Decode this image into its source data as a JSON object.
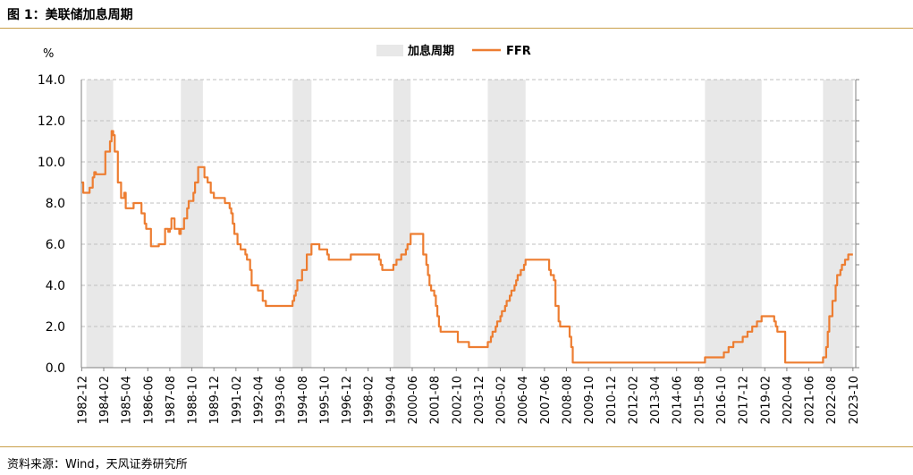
{
  "figure": {
    "title": "图 1：美联储加息周期",
    "source": "资料来源：Wind，天风证券研究所"
  },
  "chart_data": {
    "type": "line",
    "ylabel": "%",
    "ylim": [
      0,
      14
    ],
    "yticks": [
      "0.0",
      "2.0",
      "4.0",
      "6.0",
      "8.0",
      "10.0",
      "12.0",
      "14.0"
    ],
    "xlim": [
      1982.9,
      2023.9
    ],
    "xticks": [
      "1982-12",
      "1984-02",
      "1985-04",
      "1986-06",
      "1987-08",
      "1988-10",
      "1989-12",
      "1991-02",
      "1992-04",
      "1993-06",
      "1994-08",
      "1995-10",
      "1996-12",
      "1998-02",
      "1999-04",
      "2000-06",
      "2001-08",
      "2002-10",
      "2003-12",
      "2005-02",
      "2006-04",
      "2007-06",
      "2008-08",
      "2009-10",
      "2010-12",
      "2012-02",
      "2013-04",
      "2014-06",
      "2015-08",
      "2016-10",
      "2017-12",
      "2019-02",
      "2020-04",
      "2021-06",
      "2022-08",
      "2023-10"
    ],
    "grid": "horizontal-dashed",
    "legend_position": "top-center",
    "legend": [
      "加息周期",
      "FFR"
    ],
    "colors": {
      "line": "#ed7d31",
      "band": "#e8e8e8",
      "grid": "#bfbfbf",
      "axis": "#808080"
    },
    "hike_cycles": [
      [
        "1983-03",
        "1984-08"
      ],
      [
        "1988-03",
        "1989-05"
      ],
      [
        "1994-02",
        "1995-02"
      ],
      [
        "1999-06",
        "2000-05"
      ],
      [
        "2004-06",
        "2006-06"
      ],
      [
        "2015-12",
        "2018-12"
      ],
      [
        "2022-03",
        "2023-10"
      ]
    ],
    "series": [
      {
        "name": "FFR",
        "points": [
          [
            "1982-12",
            9.0
          ],
          [
            "1983-01",
            8.5
          ],
          [
            "1983-04",
            8.5
          ],
          [
            "1983-05",
            8.75
          ],
          [
            "1983-07",
            9.25
          ],
          [
            "1983-08",
            9.5
          ],
          [
            "1983-09",
            9.4
          ],
          [
            "1984-02",
            9.4
          ],
          [
            "1984-03",
            10.5
          ],
          [
            "1984-05",
            10.5
          ],
          [
            "1984-06",
            11.0
          ],
          [
            "1984-07",
            11.5
          ],
          [
            "1984-08",
            11.3
          ],
          [
            "1984-09",
            10.5
          ],
          [
            "1984-11",
            9.0
          ],
          [
            "1985-01",
            8.25
          ],
          [
            "1985-03",
            8.5
          ],
          [
            "1985-04",
            7.75
          ],
          [
            "1985-08",
            7.75
          ],
          [
            "1985-09",
            8.0
          ],
          [
            "1985-12",
            8.0
          ],
          [
            "1986-02",
            7.5
          ],
          [
            "1986-04",
            7.0
          ],
          [
            "1986-05",
            6.75
          ],
          [
            "1986-06",
            6.75
          ],
          [
            "1986-08",
            5.9
          ],
          [
            "1986-12",
            5.9
          ],
          [
            "1987-01",
            6.0
          ],
          [
            "1987-04",
            6.0
          ],
          [
            "1987-05",
            6.75
          ],
          [
            "1987-07",
            6.6
          ],
          [
            "1987-08",
            6.75
          ],
          [
            "1987-09",
            7.25
          ],
          [
            "1987-10",
            7.25
          ],
          [
            "1987-11",
            6.75
          ],
          [
            "1988-02",
            6.5
          ],
          [
            "1988-03",
            6.75
          ],
          [
            "1988-05",
            7.25
          ],
          [
            "1988-07",
            7.75
          ],
          [
            "1988-08",
            8.1
          ],
          [
            "1988-10",
            8.1
          ],
          [
            "1988-11",
            8.5
          ],
          [
            "1988-12",
            9.0
          ],
          [
            "1989-02",
            9.75
          ],
          [
            "1989-05",
            9.75
          ],
          [
            "1989-06",
            9.25
          ],
          [
            "1989-08",
            9.0
          ],
          [
            "1989-10",
            8.5
          ],
          [
            "1989-12",
            8.25
          ],
          [
            "1990-06",
            8.25
          ],
          [
            "1990-07",
            8.0
          ],
          [
            "1990-10",
            7.75
          ],
          [
            "1990-11",
            7.5
          ],
          [
            "1990-12",
            7.0
          ],
          [
            "1991-01",
            6.5
          ],
          [
            "1991-03",
            6.0
          ],
          [
            "1991-05",
            5.75
          ],
          [
            "1991-08",
            5.5
          ],
          [
            "1991-09",
            5.25
          ],
          [
            "1991-11",
            4.75
          ],
          [
            "1991-12",
            4.0
          ],
          [
            "1992-04",
            3.75
          ],
          [
            "1992-07",
            3.25
          ],
          [
            "1992-09",
            3.0
          ],
          [
            "1994-01",
            3.0
          ],
          [
            "1994-02",
            3.25
          ],
          [
            "1994-03",
            3.5
          ],
          [
            "1994-04",
            3.75
          ],
          [
            "1994-05",
            4.25
          ],
          [
            "1994-08",
            4.75
          ],
          [
            "1994-11",
            5.5
          ],
          [
            "1995-02",
            6.0
          ],
          [
            "1995-07",
            5.75
          ],
          [
            "1995-12",
            5.5
          ],
          [
            "1996-01",
            5.25
          ],
          [
            "1997-03",
            5.5
          ],
          [
            "1998-09",
            5.25
          ],
          [
            "1998-10",
            5.0
          ],
          [
            "1998-11",
            4.75
          ],
          [
            "1999-06",
            5.0
          ],
          [
            "1999-08",
            5.25
          ],
          [
            "1999-11",
            5.5
          ],
          [
            "2000-02",
            5.75
          ],
          [
            "2000-03",
            6.0
          ],
          [
            "2000-05",
            6.5
          ],
          [
            "2000-12",
            6.5
          ],
          [
            "2001-01",
            5.5
          ],
          [
            "2001-03",
            5.0
          ],
          [
            "2001-04",
            4.5
          ],
          [
            "2001-05",
            4.0
          ],
          [
            "2001-06",
            3.75
          ],
          [
            "2001-08",
            3.5
          ],
          [
            "2001-09",
            3.0
          ],
          [
            "2001-10",
            2.5
          ],
          [
            "2001-11",
            2.0
          ],
          [
            "2001-12",
            1.75
          ],
          [
            "2002-11",
            1.25
          ],
          [
            "2003-06",
            1.0
          ],
          [
            "2004-06",
            1.25
          ],
          [
            "2004-08",
            1.5
          ],
          [
            "2004-09",
            1.75
          ],
          [
            "2004-11",
            2.0
          ],
          [
            "2004-12",
            2.25
          ],
          [
            "2005-02",
            2.5
          ],
          [
            "2005-03",
            2.75
          ],
          [
            "2005-05",
            3.0
          ],
          [
            "2005-06",
            3.25
          ],
          [
            "2005-08",
            3.5
          ],
          [
            "2005-09",
            3.75
          ],
          [
            "2005-11",
            4.0
          ],
          [
            "2005-12",
            4.25
          ],
          [
            "2006-01",
            4.5
          ],
          [
            "2006-03",
            4.75
          ],
          [
            "2006-05",
            5.0
          ],
          [
            "2006-06",
            5.25
          ],
          [
            "2007-08",
            5.25
          ],
          [
            "2007-09",
            4.75
          ],
          [
            "2007-10",
            4.5
          ],
          [
            "2007-12",
            4.25
          ],
          [
            "2008-01",
            3.0
          ],
          [
            "2008-03",
            2.25
          ],
          [
            "2008-04",
            2.0
          ],
          [
            "2008-10",
            1.5
          ],
          [
            "2008-11",
            1.0
          ],
          [
            "2008-12",
            0.25
          ],
          [
            "2015-12",
            0.5
          ],
          [
            "2016-12",
            0.75
          ],
          [
            "2017-03",
            1.0
          ],
          [
            "2017-06",
            1.25
          ],
          [
            "2017-12",
            1.5
          ],
          [
            "2018-03",
            1.75
          ],
          [
            "2018-06",
            2.0
          ],
          [
            "2018-09",
            2.25
          ],
          [
            "2018-12",
            2.5
          ],
          [
            "2019-08",
            2.25
          ],
          [
            "2019-09",
            2.0
          ],
          [
            "2019-10",
            1.75
          ],
          [
            "2020-03",
            0.25
          ],
          [
            "2022-03",
            0.5
          ],
          [
            "2022-05",
            1.0
          ],
          [
            "2022-06",
            1.75
          ],
          [
            "2022-07",
            2.5
          ],
          [
            "2022-09",
            3.25
          ],
          [
            "2022-11",
            4.0
          ],
          [
            "2022-12",
            4.5
          ],
          [
            "2023-02",
            4.75
          ],
          [
            "2023-03",
            5.0
          ],
          [
            "2023-05",
            5.25
          ],
          [
            "2023-07",
            5.5
          ],
          [
            "2023-10",
            5.5
          ]
        ]
      }
    ]
  }
}
